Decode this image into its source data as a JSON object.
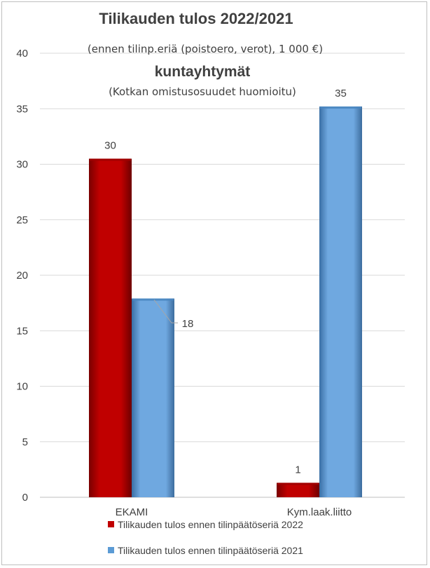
{
  "chart_data": {
    "type": "bar",
    "title": "Tilikauden tulos 2022/2021",
    "subtitle": "(ennen tilinp.eriä (poistoero, verot), 1 000 €)",
    "group_title": "kuntayhtymät",
    "note": "(Kotkan omistusosuudet huomioitu)",
    "categories": [
      "EKAMI",
      "Kym.laak.liitto"
    ],
    "series": [
      {
        "name": "Tilikauden tulos ennen tilinpäätöseriä 2022",
        "values": [
          30.5,
          1.3
        ],
        "labels": [
          "30",
          "1"
        ],
        "color": "#c00000"
      },
      {
        "name": "Tilikauden tulos ennen tilinpäätöseriä 2021",
        "values": [
          17.9,
          35.2
        ],
        "labels": [
          "18",
          "35"
        ],
        "color": "#5b9bd5"
      }
    ],
    "ylim": [
      0,
      40
    ],
    "yticks": [
      "0",
      "5",
      "10",
      "15",
      "20",
      "25",
      "30",
      "35",
      "40"
    ],
    "grid": true,
    "legend_position": "bottom"
  }
}
